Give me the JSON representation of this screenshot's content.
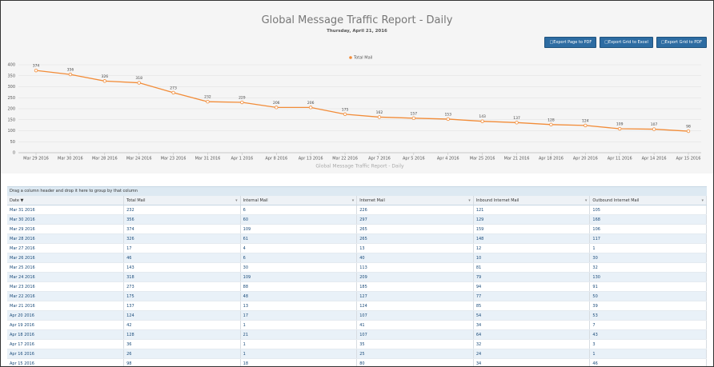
{
  "header": {
    "title": "Global Message Traffic Report - Daily",
    "subtitle": "Thursday, April 21, 2016",
    "buttons": [
      "Export Page to PDF",
      "Export Grid to Excel",
      "Export Grid to PDF"
    ]
  },
  "chart_data": {
    "type": "line",
    "x_label": "Global Message Traffic Report - Daily",
    "categories": [
      "Mar 29 2016",
      "Mar 30 2016",
      "Mar 28 2016",
      "Mar 24 2016",
      "Mar 23 2016",
      "Mar 31 2016",
      "Apr 1 2016",
      "Apr 8 2016",
      "Apr 13 2016",
      "Mar 22 2016",
      "Apr 7 2016",
      "Apr 5 2016",
      "Apr 4 2016",
      "Mar 25 2016",
      "Mar 21 2016",
      "Apr 18 2016",
      "Apr 20 2016",
      "Apr 11 2016",
      "Apr 14 2016",
      "Apr 15 2016"
    ],
    "series": [
      {
        "name": "Total Mail",
        "color": "#f28c38",
        "values": [
          374,
          356,
          326,
          318,
          273,
          232,
          229,
          206,
          206,
          175,
          162,
          157,
          153,
          143,
          137,
          128,
          124,
          109,
          107,
          98
        ]
      }
    ],
    "ylim": [
      0,
      400
    ],
    "yticks": [
      0,
      50,
      100,
      150,
      200,
      250,
      300,
      350,
      400
    ],
    "grid": true,
    "legend": "top"
  },
  "table": {
    "group_hint": "Drag a column header and drop it here to group by that column",
    "columns": [
      "Date",
      "Total Mail",
      "Internal Mail",
      "Internet Mail",
      "Inbound Internet Mail",
      "Outbound Internet Mail"
    ],
    "rows": [
      [
        "Mar 31 2016",
        "232",
        "6",
        "226",
        "121",
        "105"
      ],
      [
        "Mar 30 2016",
        "356",
        "60",
        "297",
        "129",
        "168"
      ],
      [
        "Mar 29 2016",
        "374",
        "109",
        "265",
        "159",
        "106"
      ],
      [
        "Mar 28 2016",
        "326",
        "61",
        "265",
        "148",
        "117"
      ],
      [
        "Mar 27 2016",
        "17",
        "4",
        "13",
        "12",
        "1"
      ],
      [
        "Mar 26 2016",
        "46",
        "6",
        "40",
        "10",
        "30"
      ],
      [
        "Mar 25 2016",
        "143",
        "30",
        "113",
        "81",
        "32"
      ],
      [
        "Mar 24 2016",
        "318",
        "109",
        "209",
        "79",
        "130"
      ],
      [
        "Mar 23 2016",
        "273",
        "88",
        "185",
        "94",
        "91"
      ],
      [
        "Mar 22 2016",
        "175",
        "48",
        "127",
        "77",
        "50"
      ],
      [
        "Mar 21 2016",
        "137",
        "13",
        "124",
        "85",
        "39"
      ],
      [
        "Apr 20 2016",
        "124",
        "17",
        "107",
        "54",
        "53"
      ],
      [
        "Apr 19 2016",
        "42",
        "1",
        "41",
        "34",
        "7"
      ],
      [
        "Apr 18 2016",
        "128",
        "21",
        "107",
        "64",
        "43"
      ],
      [
        "Apr 17 2016",
        "36",
        "1",
        "35",
        "32",
        "3"
      ],
      [
        "Apr 16 2016",
        "26",
        "1",
        "25",
        "24",
        "1"
      ],
      [
        "Apr 15 2016",
        "98",
        "18",
        "80",
        "34",
        "46"
      ]
    ]
  }
}
